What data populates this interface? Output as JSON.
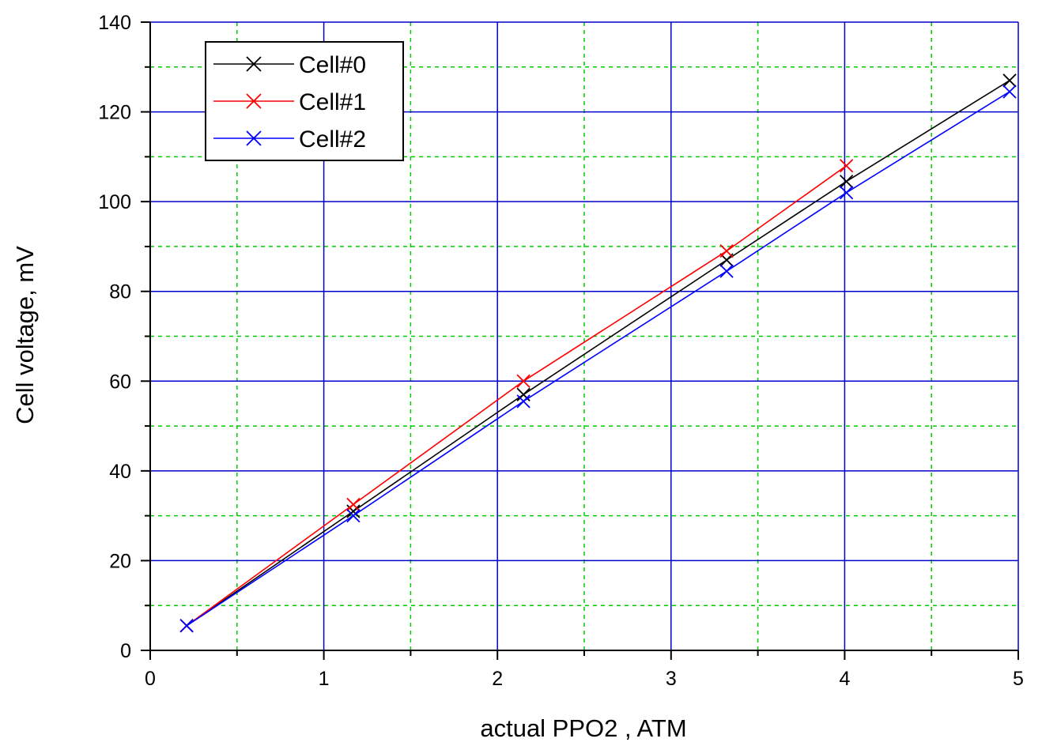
{
  "chart_data": {
    "type": "line",
    "title": "",
    "xlabel": "actual PPO2 , ATM",
    "ylabel": "Cell voltage, mV",
    "xlim": [
      0,
      5
    ],
    "ylim": [
      0,
      140
    ],
    "xticks": [
      0,
      1,
      2,
      3,
      4,
      5
    ],
    "xtick_labels": [
      "0",
      "1",
      "2",
      "3",
      "4",
      "5"
    ],
    "yticks": [
      0,
      20,
      40,
      60,
      80,
      100,
      120,
      140
    ],
    "ytick_labels": [
      "0",
      "20",
      "40",
      "60",
      "80",
      "100",
      "120",
      "140"
    ],
    "grid": {
      "major": true,
      "minor": true,
      "major_color": "#0000cc",
      "minor_color": "#00cc00"
    },
    "legend_position": "top-left",
    "marker": "x",
    "series": [
      {
        "name": "Cell#0",
        "color": "#000000",
        "x": [
          0.21,
          1.17,
          2.15,
          3.32,
          4.01,
          4.95
        ],
        "y": [
          5.5,
          31,
          57,
          87,
          104.5,
          127
        ]
      },
      {
        "name": "Cell#1",
        "color": "#ff0000",
        "x": [
          0.21,
          1.17,
          2.15,
          3.32,
          4.01
        ],
        "y": [
          5.5,
          32.5,
          60,
          89,
          108
        ]
      },
      {
        "name": "Cell#2",
        "color": "#0000ff",
        "x": [
          0.21,
          1.17,
          2.15,
          3.32,
          4.01,
          4.95
        ],
        "y": [
          5.5,
          30,
          55.5,
          84.5,
          102,
          124.5
        ]
      }
    ]
  }
}
